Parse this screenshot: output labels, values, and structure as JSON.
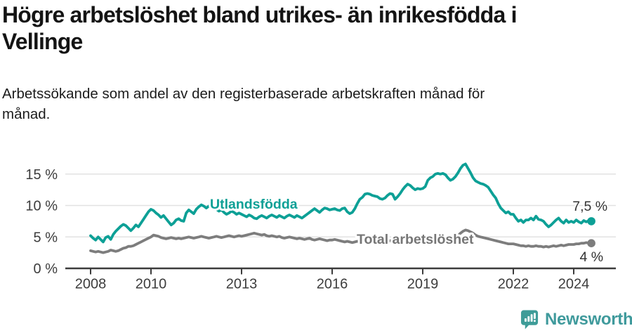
{
  "header": {
    "title_lines": [
      "Högre arbetslöshet bland utrikes- än inrikesfödda i",
      "Vellinge"
    ],
    "subtitle_lines": [
      "Arbetssökande som andel av den registerbaserade arbetskraften månad för",
      "månad."
    ]
  },
  "chart_data": {
    "type": "line",
    "title": "Högre arbetslöshet bland utrikes- än inrikesfödda i Vellinge",
    "subtitle": "Arbetssökande som andel av den registerbaserade arbetskraften månad för månad.",
    "x_start_year": 2008,
    "points_per_year": 12,
    "x_end_label_period": "2024-08",
    "x_tick_years": [
      2008,
      2010,
      2013,
      2016,
      2019,
      2022,
      2024
    ],
    "y_ticks": [
      {
        "value": 0,
        "label": "0 %"
      },
      {
        "value": 5,
        "label": "5 %"
      },
      {
        "value": 10,
        "label": "10 %"
      },
      {
        "value": 15,
        "label": "15 %"
      }
    ],
    "ylim": [
      0,
      17.5
    ],
    "grid": "horizontal",
    "legend_position": "inline-labels",
    "axis_color": "#3c3c3c",
    "grid_color": "#e2e2e2",
    "series": [
      {
        "id": "utlandsfodda",
        "name": "Utlandsfödda",
        "color": "#0DA096",
        "end_label": "7,5 %",
        "end_value": 7.5,
        "values": [
          5.2,
          4.8,
          4.5,
          5.0,
          4.6,
          4.2,
          4.9,
          5.1,
          4.6,
          5.4,
          5.9,
          6.3,
          6.7,
          7.0,
          6.8,
          6.4,
          6.0,
          6.4,
          6.9,
          6.6,
          7.2,
          7.8,
          8.4,
          9.0,
          9.4,
          9.2,
          8.8,
          8.5,
          8.1,
          8.4,
          7.9,
          7.4,
          6.9,
          7.2,
          7.7,
          7.9,
          7.6,
          7.5,
          8.8,
          9.3,
          9.0,
          8.7,
          9.4,
          9.8,
          10.1,
          9.9,
          9.6,
          9.9,
          10.0,
          9.7,
          9.4,
          9.1,
          9.3,
          8.9,
          8.6,
          8.8,
          9.1,
          8.9,
          8.6,
          8.8,
          8.6,
          8.4,
          8.2,
          8.5,
          8.3,
          8.0,
          7.9,
          8.2,
          8.4,
          8.2,
          8.0,
          8.3,
          8.5,
          8.3,
          8.1,
          8.4,
          8.2,
          8.0,
          8.3,
          8.5,
          8.3,
          8.1,
          8.4,
          8.2,
          8.0,
          8.3,
          8.6,
          8.9,
          9.2,
          9.5,
          9.2,
          8.9,
          9.3,
          9.6,
          9.5,
          9.3,
          9.4,
          9.5,
          9.3,
          9.2,
          9.5,
          9.6,
          9.0,
          8.7,
          8.9,
          9.5,
          10.3,
          11.0,
          11.3,
          11.8,
          11.9,
          11.8,
          11.6,
          11.5,
          11.4,
          11.1,
          11.0,
          11.2,
          11.6,
          11.9,
          11.8,
          11.0,
          11.4,
          11.9,
          12.5,
          13.0,
          13.4,
          13.2,
          12.8,
          12.5,
          12.7,
          12.6,
          12.7,
          13.0,
          14.0,
          14.4,
          14.6,
          15.0,
          15.1,
          15.0,
          15.1,
          14.9,
          14.4,
          14.0,
          14.2,
          14.6,
          15.2,
          15.9,
          16.4,
          16.6,
          15.9,
          15.2,
          14.4,
          13.9,
          13.7,
          13.5,
          13.4,
          13.2,
          12.9,
          12.3,
          11.7,
          11.2,
          10.3,
          9.6,
          9.2,
          8.8,
          9.0,
          8.6,
          8.6,
          8.0,
          7.5,
          7.7,
          7.3,
          7.7,
          7.7,
          8.0,
          7.7,
          8.3,
          7.8,
          7.7,
          7.5,
          7.0,
          6.6,
          6.9,
          7.3,
          7.7,
          8.0,
          7.5,
          7.2,
          7.7,
          7.3,
          7.5,
          7.3,
          7.7,
          7.4,
          7.2,
          7.6,
          7.4,
          7.6,
          7.5
        ]
      },
      {
        "id": "total",
        "name": "Total arbetslöshet",
        "color": "#7d7d7d",
        "end_label": "4 %",
        "end_value": 4,
        "values": [
          2.8,
          2.7,
          2.6,
          2.7,
          2.6,
          2.5,
          2.6,
          2.7,
          2.9,
          2.8,
          2.7,
          2.8,
          3.0,
          3.2,
          3.3,
          3.5,
          3.5,
          3.6,
          3.8,
          4.0,
          4.2,
          4.4,
          4.6,
          4.8,
          5.0,
          5.3,
          5.2,
          5.1,
          4.9,
          4.8,
          4.7,
          4.8,
          4.9,
          4.8,
          4.7,
          4.8,
          4.7,
          4.8,
          4.9,
          5.0,
          4.9,
          4.8,
          4.9,
          5.0,
          5.1,
          5.0,
          4.9,
          4.8,
          4.9,
          5.0,
          5.1,
          5.0,
          4.9,
          5.0,
          5.1,
          5.2,
          5.1,
          5.0,
          5.1,
          5.2,
          5.1,
          5.2,
          5.3,
          5.4,
          5.5,
          5.6,
          5.5,
          5.4,
          5.3,
          5.4,
          5.2,
          5.1,
          5.2,
          5.1,
          5.0,
          5.1,
          4.9,
          4.8,
          4.9,
          5.0,
          4.9,
          4.8,
          4.7,
          4.8,
          4.7,
          4.6,
          4.7,
          4.8,
          4.6,
          4.5,
          4.6,
          4.7,
          4.6,
          4.5,
          4.4,
          4.5,
          4.5,
          4.6,
          4.5,
          4.4,
          4.3,
          4.2,
          4.3,
          4.2,
          4.1,
          4.2,
          4.3,
          4.2,
          4.3,
          4.4,
          4.3,
          4.2,
          4.3,
          4.4,
          4.5,
          4.4,
          4.3,
          4.2,
          4.3,
          4.4,
          4.3,
          4.2,
          4.1,
          4.2,
          4.3,
          4.2,
          4.1,
          4.0,
          4.1,
          4.2,
          4.1,
          4.2,
          4.3,
          4.4,
          4.3,
          4.4,
          4.5,
          4.4,
          4.5,
          4.6,
          4.5,
          4.4,
          4.5,
          4.6,
          4.7,
          4.8,
          5.2,
          5.6,
          5.9,
          6.1,
          6.0,
          5.8,
          5.6,
          5.3,
          5.1,
          5.0,
          4.9,
          4.8,
          4.7,
          4.6,
          4.5,
          4.4,
          4.3,
          4.2,
          4.1,
          4.0,
          3.9,
          3.9,
          3.9,
          3.8,
          3.7,
          3.6,
          3.6,
          3.5,
          3.6,
          3.5,
          3.5,
          3.6,
          3.5,
          3.5,
          3.4,
          3.5,
          3.4,
          3.5,
          3.6,
          3.5,
          3.6,
          3.7,
          3.6,
          3.7,
          3.8,
          3.8,
          3.8,
          3.9,
          3.9,
          4.0,
          4.0,
          4.1,
          4.0,
          4.0
        ]
      }
    ]
  },
  "footer": {
    "brand": "Newsworthy",
    "brand_color": "#3F9A9C",
    "icon_color": "#3E9C98"
  }
}
